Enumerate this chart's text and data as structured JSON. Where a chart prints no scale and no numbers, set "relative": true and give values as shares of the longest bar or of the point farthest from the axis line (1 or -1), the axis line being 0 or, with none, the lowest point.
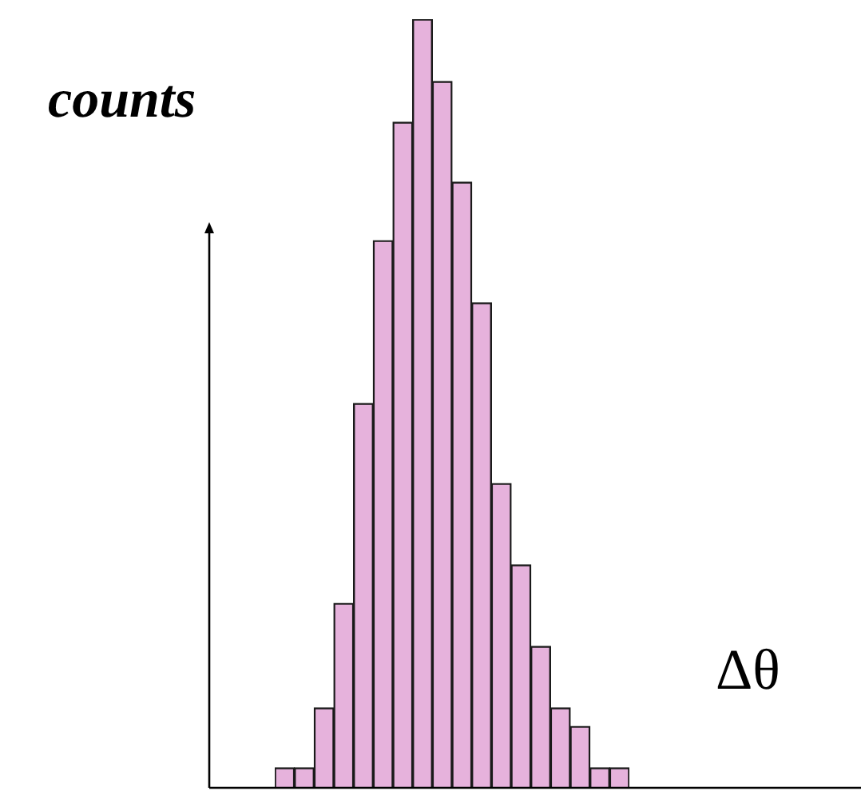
{
  "chart_data": {
    "type": "bar",
    "relative": true,
    "ylabel": "counts",
    "xlabel": "Δθ",
    "categories": [
      null,
      null,
      null,
      null,
      null,
      null,
      null,
      null,
      null,
      null,
      null,
      null,
      null,
      null,
      null,
      null,
      null,
      null
    ],
    "values": [
      0.026,
      0.026,
      0.104,
      0.24,
      0.5,
      0.712,
      0.866,
      1,
      0.919,
      0.788,
      0.631,
      0.396,
      0.29,
      0.184,
      0.104,
      0.08,
      0.026,
      0.026
    ],
    "color": "#e6b2dc",
    "legend": false
  }
}
